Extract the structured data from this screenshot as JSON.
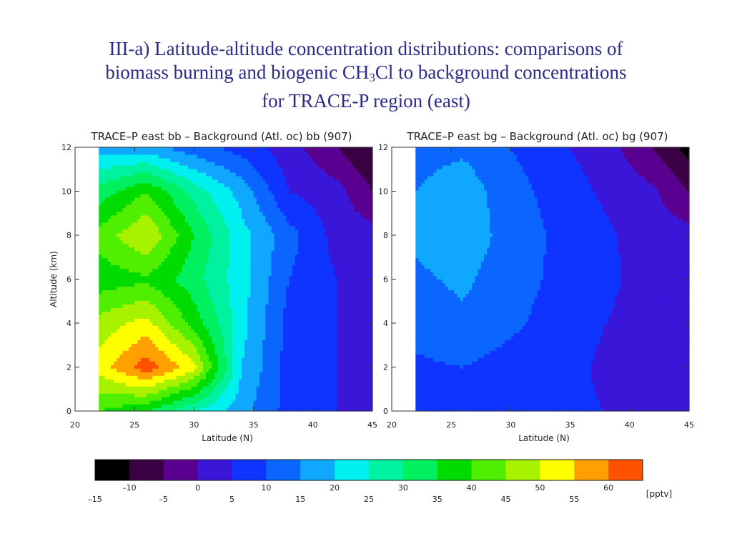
{
  "slide": {
    "title_line1": "III-a)  Latitude-altitude concentration distributions: comparisons of",
    "title_line2_pre": "biomass burning and biogenic CH",
    "title_line2_sub": "3",
    "title_line2_post": "Cl to background concentrations",
    "title_line3": "for TRACE-P region (east)"
  },
  "chart_data": [
    {
      "type": "heatmap",
      "title": "TRACE–P east bb – Background (Atl. oc) bb (907)",
      "xlabel": "Latitude (N)",
      "ylabel": "Altitude (km)",
      "xlim": [
        20,
        45
      ],
      "ylim": [
        0,
        12
      ],
      "data_xlim": [
        22,
        45
      ],
      "xticks": [
        20,
        25,
        30,
        35,
        40,
        45
      ],
      "yticks": [
        0,
        2,
        4,
        6,
        8,
        10,
        12
      ],
      "x": [
        22,
        26,
        30,
        34,
        38,
        42,
        45
      ],
      "y": [
        0,
        2,
        4,
        6,
        8,
        10,
        12
      ],
      "z": [
        [
          40,
          35,
          25,
          17,
          8,
          5,
          4
        ],
        [
          52,
          63,
          52,
          20,
          8,
          5,
          4
        ],
        [
          47,
          52,
          38,
          22,
          8,
          5,
          4
        ],
        [
          37,
          39,
          32,
          22,
          10,
          5,
          3
        ],
        [
          42,
          50,
          35,
          22,
          12,
          3,
          2
        ],
        [
          32,
          40,
          28,
          18,
          5,
          2,
          -5
        ],
        [
          18,
          17,
          12,
          8,
          2,
          -5,
          -10
        ]
      ]
    },
    {
      "type": "heatmap",
      "title": "TRACE–P east bg – Background (Atl. oc) bg (907)",
      "xlabel": "Latitude (N)",
      "ylabel": "",
      "xlim": [
        20,
        45
      ],
      "ylim": [
        0,
        12
      ],
      "data_xlim": [
        22,
        45
      ],
      "xticks": [
        20,
        25,
        30,
        35,
        40,
        45
      ],
      "yticks": [
        0,
        2,
        4,
        6,
        8,
        10,
        12
      ],
      "x": [
        22,
        26,
        30,
        34,
        38,
        42,
        45
      ],
      "y": [
        0,
        2,
        4,
        6,
        8,
        10,
        12
      ],
      "z": [
        [
          8,
          8,
          7,
          6,
          5,
          4,
          4
        ],
        [
          9,
          10,
          8,
          7,
          4,
          3,
          3
        ],
        [
          12,
          14,
          11,
          8,
          5,
          3,
          3
        ],
        [
          14,
          16,
          12,
          9,
          6,
          3,
          3
        ],
        [
          16,
          18,
          13,
          9,
          6,
          2,
          2
        ],
        [
          15,
          18,
          12,
          8,
          4,
          1,
          -5
        ],
        [
          13,
          14,
          10,
          6,
          2,
          -5,
          -12
        ]
      ]
    }
  ],
  "colorbar": {
    "unit": "[pptv]",
    "bounds": [
      -15,
      65
    ],
    "step": 5,
    "upper_labels": [
      "–10",
      "0",
      "10",
      "20",
      "30",
      "40",
      "50",
      "60"
    ],
    "upper_values": [
      -10,
      0,
      10,
      20,
      30,
      40,
      50,
      60
    ],
    "lower_labels": [
      "–15",
      "–5",
      "5",
      "15",
      "25",
      "35",
      "45",
      "55"
    ],
    "lower_values": [
      -15,
      -5,
      5,
      15,
      25,
      35,
      45,
      55
    ],
    "colors": [
      "#000000",
      "#3a0044",
      "#5a0090",
      "#3a16d8",
      "#1034ff",
      "#0a66ff",
      "#10a8ff",
      "#00f0f0",
      "#00f2a0",
      "#00f060",
      "#00dc00",
      "#50ee00",
      "#a8f200",
      "#ffff00",
      "#ffa000",
      "#ff5200"
    ]
  }
}
